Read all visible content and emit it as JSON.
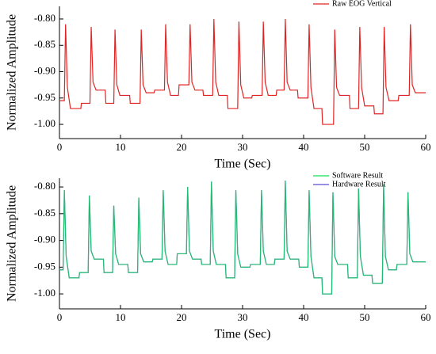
{
  "chart_data": [
    {
      "type": "line",
      "x_label": "Time (Sec)",
      "y_label": "Normalized Amplitude",
      "xlim": [
        0,
        60
      ],
      "xticks": [
        0,
        10,
        20,
        30,
        40,
        50,
        60
      ],
      "ylim": [
        -1.027,
        -0.776
      ],
      "yticks": [
        {
          "value": -1.0,
          "label": "-1.00"
        },
        -0.95,
        {
          "value": -0.9,
          "label": "-0.90"
        },
        -0.85,
        {
          "value": -0.8,
          "label": "-0.80"
        }
      ],
      "legend": "top-right",
      "x": [
        0,
        0.8,
        1.0,
        1.3,
        1.8,
        3.5,
        3.6,
        5.0,
        5.2,
        5.5,
        6.0,
        7.5,
        7.6,
        8.9,
        9.1,
        9.4,
        9.9,
        11.5,
        11.6,
        13.2,
        13.4,
        13.7,
        14.2,
        15.5,
        15.6,
        17.2,
        17.4,
        17.7,
        18.2,
        19.5,
        19.6,
        21.2,
        21.4,
        21.7,
        22.2,
        23.5,
        23.6,
        25.1,
        25.3,
        25.6,
        26.1,
        27.5,
        27.6,
        29.2,
        29.4,
        29.7,
        30.2,
        31.5,
        31.6,
        33.2,
        33.4,
        33.7,
        34.2,
        35.5,
        35.6,
        36.8,
        37.0,
        37.3,
        37.8,
        39.0,
        39.1,
        40.7,
        40.9,
        41.2,
        41.7,
        43.0,
        43.1,
        44.9,
        45.1,
        45.4,
        45.9,
        47.5,
        47.6,
        49.0,
        49.2,
        49.5,
        50.0,
        51.5,
        51.6,
        53.0,
        53.2,
        53.5,
        54.0,
        55.5,
        55.6,
        57.3,
        57.5,
        57.8,
        58.3,
        60
      ],
      "series": [
        {
          "name": "Raw EOG Vertical",
          "color": "#e02424",
          "values": [
            -0.955,
            -0.955,
            -0.81,
            -0.93,
            -0.97,
            -0.97,
            -0.96,
            -0.96,
            -0.815,
            -0.92,
            -0.935,
            -0.935,
            -0.96,
            -0.96,
            -0.82,
            -0.925,
            -0.945,
            -0.945,
            -0.96,
            -0.96,
            -0.82,
            -0.925,
            -0.94,
            -0.94,
            -0.935,
            -0.935,
            -0.81,
            -0.92,
            -0.945,
            -0.945,
            -0.925,
            -0.925,
            -0.81,
            -0.92,
            -0.935,
            -0.935,
            -0.945,
            -0.945,
            -0.8,
            -0.92,
            -0.945,
            -0.945,
            -0.97,
            -0.97,
            -0.805,
            -0.925,
            -0.95,
            -0.95,
            -0.945,
            -0.945,
            -0.805,
            -0.92,
            -0.945,
            -0.945,
            -0.935,
            -0.935,
            -0.8,
            -0.92,
            -0.935,
            -0.935,
            -0.95,
            -0.95,
            -0.81,
            -0.93,
            -0.97,
            -0.97,
            -1.0,
            -1.0,
            -0.82,
            -0.93,
            -0.945,
            -0.945,
            -0.97,
            -0.97,
            -0.815,
            -0.93,
            -0.965,
            -0.965,
            -0.98,
            -0.98,
            -0.815,
            -0.93,
            -0.955,
            -0.955,
            -0.945,
            -0.945,
            -0.81,
            -0.925,
            -0.94,
            -0.94
          ]
        }
      ]
    },
    {
      "type": "line",
      "x_label": "Time (Sec)",
      "y_label": "Normalized Amplitude",
      "xlim": [
        0,
        60
      ],
      "xticks": [
        0,
        10,
        20,
        30,
        40,
        50,
        60
      ],
      "ylim": [
        -1.028,
        -0.7836
      ],
      "yticks": [
        {
          "value": -1.0,
          "label": "-1.00"
        },
        -0.95,
        {
          "value": -0.9,
          "label": "-0.90"
        },
        -0.85,
        {
          "value": -0.8,
          "label": "-0.80"
        }
      ],
      "legend": "top-right",
      "x": [
        0,
        0.6,
        0.8,
        1.1,
        1.6,
        3.2,
        3.3,
        4.7,
        4.9,
        5.2,
        5.7,
        7.2,
        7.3,
        8.7,
        8.9,
        9.2,
        9.7,
        11.2,
        11.3,
        12.8,
        13.0,
        13.3,
        13.8,
        15.2,
        15.3,
        16.8,
        17.0,
        17.3,
        17.8,
        19.2,
        19.3,
        20.8,
        21.0,
        21.3,
        21.8,
        23.2,
        23.3,
        24.7,
        24.9,
        25.2,
        25.7,
        27.2,
        27.3,
        28.7,
        28.9,
        29.2,
        29.7,
        31.2,
        31.3,
        32.9,
        33.1,
        33.4,
        33.9,
        35.2,
        35.3,
        36.8,
        37.0,
        37.3,
        37.8,
        39.2,
        39.3,
        40.7,
        40.9,
        41.2,
        41.7,
        43.0,
        43.1,
        44.6,
        44.8,
        45.1,
        45.6,
        47.2,
        47.3,
        48.8,
        49.0,
        49.3,
        49.8,
        51.2,
        51.3,
        52.9,
        53.1,
        53.4,
        53.9,
        55.2,
        55.3,
        56.9,
        57.1,
        57.4,
        57.9,
        60
      ],
      "series": [
        {
          "name": "Software Result",
          "color": "#10e050",
          "values": [
            -0.955,
            -0.955,
            -0.806,
            -0.93,
            -0.97,
            -0.97,
            -0.96,
            -0.96,
            -0.816,
            -0.92,
            -0.935,
            -0.935,
            -0.96,
            -0.96,
            -0.835,
            -0.925,
            -0.945,
            -0.945,
            -0.96,
            -0.96,
            -0.82,
            -0.925,
            -0.94,
            -0.94,
            -0.935,
            -0.935,
            -0.806,
            -0.92,
            -0.945,
            -0.945,
            -0.925,
            -0.925,
            -0.8,
            -0.92,
            -0.935,
            -0.935,
            -0.945,
            -0.945,
            -0.79,
            -0.92,
            -0.945,
            -0.945,
            -0.97,
            -0.97,
            -0.806,
            -0.925,
            -0.95,
            -0.95,
            -0.945,
            -0.945,
            -0.806,
            -0.92,
            -0.945,
            -0.945,
            -0.935,
            -0.935,
            -0.788,
            -0.92,
            -0.935,
            -0.935,
            -0.95,
            -0.95,
            -0.806,
            -0.93,
            -0.97,
            -0.97,
            -1.0,
            -1.0,
            -0.81,
            -0.93,
            -0.945,
            -0.945,
            -0.97,
            -0.97,
            -0.803,
            -0.93,
            -0.965,
            -0.965,
            -0.98,
            -0.98,
            -0.795,
            -0.93,
            -0.955,
            -0.955,
            -0.945,
            -0.945,
            -0.81,
            -0.925,
            -0.94,
            -0.94
          ]
        },
        {
          "name": "Hardware Result",
          "color": "#5a4fd0",
          "values": [
            -0.955,
            -0.955,
            -0.806,
            -0.93,
            -0.97,
            -0.97,
            -0.96,
            -0.96,
            -0.816,
            -0.92,
            -0.935,
            -0.935,
            -0.96,
            -0.96,
            -0.835,
            -0.925,
            -0.945,
            -0.945,
            -0.96,
            -0.96,
            -0.82,
            -0.925,
            -0.94,
            -0.94,
            -0.935,
            -0.935,
            -0.806,
            -0.92,
            -0.945,
            -0.945,
            -0.925,
            -0.925,
            -0.8,
            -0.92,
            -0.935,
            -0.935,
            -0.945,
            -0.945,
            -0.79,
            -0.92,
            -0.945,
            -0.945,
            -0.97,
            -0.97,
            -0.806,
            -0.925,
            -0.95,
            -0.95,
            -0.945,
            -0.945,
            -0.806,
            -0.92,
            -0.945,
            -0.945,
            -0.935,
            -0.935,
            -0.788,
            -0.92,
            -0.935,
            -0.935,
            -0.95,
            -0.95,
            -0.806,
            -0.93,
            -0.97,
            -0.97,
            -1.0,
            -1.0,
            -0.81,
            -0.93,
            -0.945,
            -0.945,
            -0.97,
            -0.97,
            -0.803,
            -0.93,
            -0.965,
            -0.965,
            -0.98,
            -0.98,
            -0.795,
            -0.93,
            -0.955,
            -0.955,
            -0.945,
            -0.945,
            -0.81,
            -0.925,
            -0.94,
            -0.94
          ]
        }
      ]
    }
  ]
}
